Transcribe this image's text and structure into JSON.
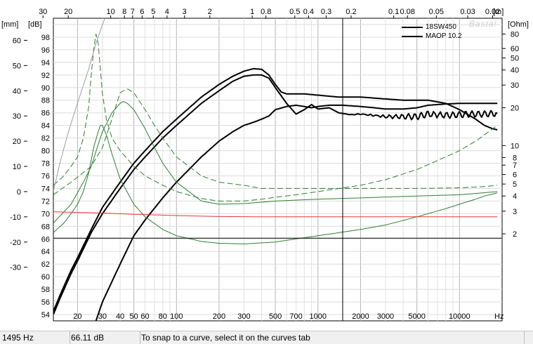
{
  "chart_data": {
    "type": "line",
    "title": "",
    "x_unit": "Hz",
    "x_unit_top": "[m]",
    "xlim": [
      13.5,
      20000
    ],
    "x_scale": "log",
    "x_ticks": [
      {
        "v": 20,
        "label": "20"
      },
      {
        "v": 30,
        "label": "30"
      },
      {
        "v": 40,
        "label": "40"
      },
      {
        "v": 50,
        "label": "50"
      },
      {
        "v": 60,
        "label": "60"
      },
      {
        "v": 80,
        "label": "80"
      },
      {
        "v": 100,
        "label": "100"
      },
      {
        "v": 200,
        "label": "200"
      },
      {
        "v": 300,
        "label": "300"
      },
      {
        "v": 500,
        "label": "500"
      },
      {
        "v": 700,
        "label": "700"
      },
      {
        "v": 1000,
        "label": "1000"
      },
      {
        "v": 2000,
        "label": "2000"
      },
      {
        "v": 3000,
        "label": "3000"
      },
      {
        "v": 5000,
        "label": "5000"
      },
      {
        "v": 10000,
        "label": "10000"
      }
    ],
    "top_unit_label": "[m]",
    "top_ticks": [
      {
        "label": "30",
        "v": 11.4
      },
      {
        "label": "20",
        "v": 17.2
      },
      {
        "label": "10",
        "v": 34.3
      },
      {
        "label": "8",
        "v": 42.9
      },
      {
        "label": "7",
        "v": 49.0
      },
      {
        "label": "6",
        "v": 57.2
      },
      {
        "label": "5",
        "v": 68.6
      },
      {
        "label": "4",
        "v": 85.8
      },
      {
        "label": "3",
        "v": 114
      },
      {
        "label": "2",
        "v": 172
      },
      {
        "label": "1",
        "v": 343
      },
      {
        "label": "0.8",
        "v": 429
      },
      {
        "label": "0.5",
        "v": 686
      },
      {
        "label": "0.4",
        "v": 858
      },
      {
        "label": "0.3",
        "v": 1143
      },
      {
        "label": "0.2",
        "v": 1715
      },
      {
        "label": "0.1",
        "v": 3430
      },
      {
        "label": "0.08",
        "v": 4288
      },
      {
        "label": "0.05",
        "v": 6860
      },
      {
        "label": "0.03",
        "v": 11433
      },
      {
        "label": "0.02",
        "v": 17150
      }
    ],
    "y_unit_mm": "[mm]",
    "y_unit_db": "[dB]",
    "y_unit_ohm": "[Ohm]",
    "ylim_db": [
      53,
      101
    ],
    "db_ticks": [
      54,
      56,
      58,
      60,
      62,
      64,
      66,
      68,
      70,
      72,
      74,
      76,
      78,
      80,
      82,
      84,
      86,
      88,
      90,
      92,
      94,
      96,
      98
    ],
    "mm_ticks": [
      {
        "label": "60",
        "db": 97.5
      },
      {
        "label": "50",
        "db": 93.5
      },
      {
        "label": "40",
        "db": 89.5
      },
      {
        "label": "30",
        "db": 85.5
      },
      {
        "label": "20",
        "db": 81.5
      },
      {
        "label": "10",
        "db": 77.5
      },
      {
        "label": "0",
        "db": 73.5
      },
      {
        "label": "-10",
        "db": 69.5
      },
      {
        "label": "-20",
        "db": 65.5
      },
      {
        "label": "-30",
        "db": 61.5
      }
    ],
    "ohm_ticks": [
      {
        "label": "80",
        "db": 98.5
      },
      {
        "label": "60",
        "db": 96.2
      },
      {
        "label": "50",
        "db": 94.7
      },
      {
        "label": "40",
        "db": 92.8
      },
      {
        "label": "30",
        "db": 90.4
      },
      {
        "label": "20",
        "db": 86.8
      },
      {
        "label": "10",
        "db": 80.8
      },
      {
        "label": "8",
        "db": 78.9
      },
      {
        "label": "7",
        "db": 77.7
      },
      {
        "label": "6",
        "db": 76.2
      },
      {
        "label": "5",
        "db": 74.7
      },
      {
        "label": "4",
        "db": 72.8
      },
      {
        "label": "3",
        "db": 70.4
      },
      {
        "label": "2",
        "db": 66.8
      }
    ],
    "cursor": {
      "x_hz": 1495,
      "y_db": 66.11
    },
    "legend": [
      "18SW450",
      "MAOP 10.2"
    ],
    "watermark": "Basta!",
    "series": [
      {
        "color": "#000000",
        "width": 2,
        "style": "solid",
        "ripple": 0.0,
        "points": [
          [
            13.5,
            54.5
          ],
          [
            15,
            57
          ],
          [
            18,
            61
          ],
          [
            20,
            63
          ],
          [
            25,
            67.5
          ],
          [
            30,
            71
          ],
          [
            40,
            75
          ],
          [
            50,
            78
          ],
          [
            60,
            80
          ],
          [
            80,
            83
          ],
          [
            100,
            85
          ],
          [
            150,
            88.5
          ],
          [
            200,
            90.5
          ],
          [
            250,
            91.8
          ],
          [
            300,
            92.6
          ],
          [
            350,
            93
          ],
          [
            400,
            92.9
          ],
          [
            450,
            92
          ],
          [
            500,
            90.5
          ],
          [
            550,
            89.3
          ],
          [
            600,
            89
          ],
          [
            700,
            89
          ],
          [
            800,
            89
          ],
          [
            1000,
            88.8
          ],
          [
            1400,
            88.5
          ],
          [
            2000,
            88.5
          ],
          [
            3000,
            88.2
          ],
          [
            4000,
            88
          ],
          [
            6000,
            88
          ],
          [
            8000,
            87.5
          ],
          [
            10000,
            86.5
          ],
          [
            13000,
            85
          ],
          [
            15000,
            84
          ],
          [
            17000,
            83.5
          ],
          [
            18500,
            83.3
          ]
        ]
      },
      {
        "color": "#000000",
        "width": 2,
        "style": "solid",
        "ripple": 0.5,
        "points": [
          [
            13.5,
            54
          ],
          [
            15,
            56.5
          ],
          [
            18,
            60.5
          ],
          [
            20,
            62.5
          ],
          [
            25,
            67
          ],
          [
            30,
            70
          ],
          [
            40,
            74
          ],
          [
            50,
            77
          ],
          [
            60,
            79
          ],
          [
            80,
            82
          ],
          [
            100,
            84
          ],
          [
            150,
            87.5
          ],
          [
            200,
            89.5
          ],
          [
            250,
            91
          ],
          [
            300,
            91.8
          ],
          [
            350,
            92
          ],
          [
            400,
            92
          ],
          [
            450,
            91.5
          ],
          [
            500,
            90
          ],
          [
            600,
            87.5
          ],
          [
            700,
            85.8
          ],
          [
            800,
            86.5
          ],
          [
            900,
            87.3
          ],
          [
            1000,
            86.6
          ],
          [
            1200,
            86.8
          ],
          [
            1400,
            86
          ],
          [
            1700,
            85.7
          ],
          [
            2000,
            85.8
          ],
          [
            3000,
            85.4
          ],
          [
            4000,
            85.4
          ],
          [
            5000,
            85.4
          ],
          [
            6000,
            85.8
          ],
          [
            8000,
            85.6
          ],
          [
            10000,
            85.7
          ],
          [
            12000,
            85.8
          ],
          [
            15000,
            85.8
          ],
          [
            18500,
            85.9
          ]
        ]
      },
      {
        "color": "#000000",
        "width": 2,
        "style": "solid",
        "ripple": 0.0,
        "points": [
          [
            27,
            53
          ],
          [
            30,
            56
          ],
          [
            40,
            62
          ],
          [
            50,
            66.5
          ],
          [
            60,
            69
          ],
          [
            80,
            72.5
          ],
          [
            100,
            75
          ],
          [
            150,
            79
          ],
          [
            200,
            81.5
          ],
          [
            250,
            83
          ],
          [
            300,
            84
          ],
          [
            350,
            84.5
          ],
          [
            400,
            85
          ],
          [
            450,
            85.5
          ],
          [
            500,
            86.5
          ],
          [
            600,
            87
          ],
          [
            700,
            87.2
          ],
          [
            800,
            87
          ],
          [
            900,
            86.8
          ],
          [
            1000,
            87
          ],
          [
            1200,
            87.2
          ],
          [
            1500,
            87.2
          ],
          [
            2000,
            87
          ],
          [
            2500,
            86.8
          ],
          [
            3000,
            86.6
          ],
          [
            4000,
            86.6
          ],
          [
            5000,
            86.8
          ],
          [
            6000,
            87.2
          ],
          [
            8000,
            87.4
          ],
          [
            10000,
            87.5
          ],
          [
            12000,
            87.5
          ],
          [
            15000,
            87.5
          ],
          [
            18500,
            87.5
          ]
        ]
      },
      {
        "color": "#2e7d32",
        "width": 1,
        "style": "dash",
        "ripple": 0.0,
        "points": [
          [
            13.5,
            74.5
          ],
          [
            16,
            76
          ],
          [
            18,
            77.5
          ],
          [
            20,
            79
          ],
          [
            22,
            82
          ],
          [
            24,
            87
          ],
          [
            25,
            92
          ],
          [
            26,
            96
          ],
          [
            27,
            98.5
          ],
          [
            28,
            97
          ],
          [
            29,
            93
          ],
          [
            30,
            89
          ],
          [
            32,
            85
          ],
          [
            35,
            82
          ],
          [
            40,
            80
          ],
          [
            50,
            77.5
          ],
          [
            60,
            76
          ],
          [
            80,
            74.5
          ],
          [
            100,
            73.5
          ],
          [
            150,
            72.4
          ],
          [
            200,
            72
          ],
          [
            300,
            72
          ],
          [
            400,
            72.3
          ],
          [
            500,
            72.6
          ],
          [
            700,
            73
          ],
          [
            1000,
            73.5
          ],
          [
            2000,
            74.5
          ],
          [
            3000,
            75.4
          ],
          [
            5000,
            77
          ],
          [
            8000,
            79
          ],
          [
            10000,
            80
          ],
          [
            13000,
            81.5
          ],
          [
            15000,
            82.5
          ],
          [
            18500,
            84
          ]
        ]
      },
      {
        "color": "#2e7d32",
        "width": 1,
        "style": "dash",
        "ripple": 0.0,
        "points": [
          [
            13.5,
            73
          ],
          [
            18,
            75
          ],
          [
            25,
            77.5
          ],
          [
            30,
            80.5
          ],
          [
            35,
            85
          ],
          [
            40,
            89.2
          ],
          [
            45,
            89.8
          ],
          [
            50,
            89.2
          ],
          [
            60,
            86.5
          ],
          [
            70,
            84
          ],
          [
            80,
            82
          ],
          [
            100,
            79
          ],
          [
            150,
            76
          ],
          [
            200,
            75
          ],
          [
            300,
            74.5
          ],
          [
            400,
            74
          ],
          [
            500,
            74
          ],
          [
            700,
            74
          ],
          [
            1000,
            74
          ],
          [
            2000,
            74
          ],
          [
            3000,
            74
          ],
          [
            5000,
            74
          ],
          [
            10000,
            74.1
          ],
          [
            15000,
            74.3
          ],
          [
            18500,
            74.5
          ]
        ]
      },
      {
        "color": "#2e7d32",
        "width": 1,
        "style": "solid",
        "ripple": 0.0,
        "points": [
          [
            13.5,
            67
          ],
          [
            16,
            68.5
          ],
          [
            18,
            70
          ],
          [
            20,
            71.5
          ],
          [
            22,
            73.5
          ],
          [
            24,
            76.5
          ],
          [
            26,
            80.5
          ],
          [
            28,
            83
          ],
          [
            29,
            84
          ],
          [
            30,
            84
          ],
          [
            32,
            82.5
          ],
          [
            35,
            79.5
          ],
          [
            40,
            75.5
          ],
          [
            50,
            71.5
          ],
          [
            60,
            69.5
          ],
          [
            80,
            67.5
          ],
          [
            100,
            66.5
          ],
          [
            150,
            65.6
          ],
          [
            200,
            65.3
          ],
          [
            300,
            65.2
          ],
          [
            500,
            65.5
          ],
          [
            700,
            66
          ],
          [
            1000,
            66.5
          ],
          [
            2000,
            67.5
          ],
          [
            3000,
            68.2
          ],
          [
            5000,
            69.5
          ],
          [
            8000,
            70.8
          ],
          [
            10000,
            71.5
          ],
          [
            13000,
            72.3
          ],
          [
            15000,
            72.8
          ],
          [
            18500,
            73.3
          ]
        ]
      },
      {
        "color": "#2e7d32",
        "width": 1,
        "style": "solid",
        "ripple": 0.0,
        "points": [
          [
            13.5,
            68.5
          ],
          [
            18,
            71.5
          ],
          [
            22,
            75
          ],
          [
            25,
            77.5
          ],
          [
            28,
            81
          ],
          [
            30,
            83
          ],
          [
            35,
            86
          ],
          [
            40,
            87.5
          ],
          [
            42,
            87.8
          ],
          [
            45,
            87.5
          ],
          [
            50,
            86.5
          ],
          [
            60,
            83.5
          ],
          [
            70,
            80.5
          ],
          [
            80,
            78
          ],
          [
            100,
            75
          ],
          [
            150,
            72
          ],
          [
            200,
            71.5
          ],
          [
            300,
            71.6
          ],
          [
            500,
            72
          ],
          [
            1000,
            72.3
          ],
          [
            2000,
            72.5
          ],
          [
            5000,
            72.8
          ],
          [
            10000,
            73
          ],
          [
            18500,
            73.5
          ]
        ]
      },
      {
        "color": "#e53935",
        "width": 1,
        "style": "solid",
        "ripple": 0.0,
        "points": [
          [
            13.5,
            70.3
          ],
          [
            20,
            70.2
          ],
          [
            30,
            70.1
          ],
          [
            50,
            69.9
          ],
          [
            100,
            69.7
          ],
          [
            200,
            69.55
          ],
          [
            500,
            69.5
          ],
          [
            1000,
            69.5
          ],
          [
            5000,
            69.5
          ],
          [
            18500,
            69.5
          ]
        ]
      },
      {
        "color": "#9e9e9e",
        "width": 1,
        "style": "solid",
        "ripple": 0.0,
        "points": [
          [
            13.5,
            73.5
          ],
          [
            15,
            78
          ],
          [
            17,
            82.5
          ],
          [
            19,
            86
          ],
          [
            21,
            89
          ],
          [
            24,
            93
          ],
          [
            27,
            97
          ],
          [
            30,
            100
          ],
          [
            32,
            101.5
          ]
        ]
      }
    ]
  },
  "status": {
    "frequency": "1495 Hz",
    "level": "66.11 dB",
    "hint": "To snap to a curve, select it on the curves tab"
  }
}
